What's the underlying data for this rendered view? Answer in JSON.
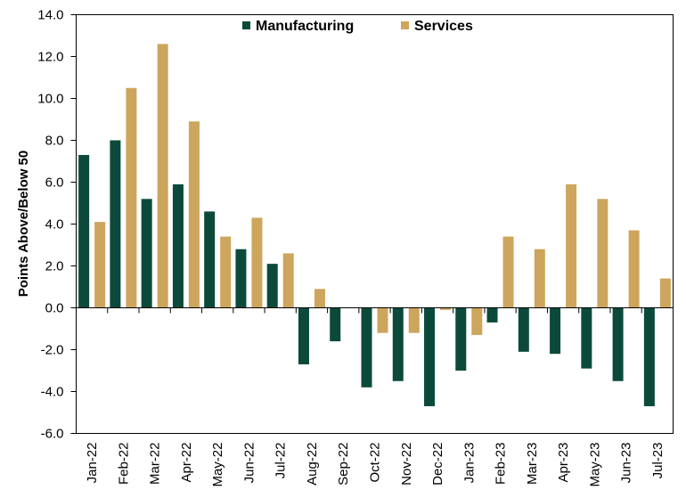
{
  "chart_data": {
    "type": "bar",
    "title": "",
    "xlabel": "",
    "ylabel": "Points Above/Below 50",
    "ylim": [
      -6.0,
      14.0
    ],
    "yticks": [
      "14.0",
      "12.0",
      "10.0",
      "8.0",
      "6.0",
      "4.0",
      "2.0",
      "0.0",
      "-2.0",
      "-4.0",
      "-6.0"
    ],
    "categories": [
      "Jan-22",
      "Feb-22",
      "Mar-22",
      "Apr-22",
      "May-22",
      "Jun-22",
      "Jul-22",
      "Aug-22",
      "Sep-22",
      "Oct-22",
      "Nov-22",
      "Dec-22",
      "Jan-23",
      "Feb-23",
      "Mar-23",
      "Apr-23",
      "May-23",
      "Jun-23",
      "Jul-23"
    ],
    "series": [
      {
        "name": "Manufacturing",
        "color": "#0b4a3b",
        "values": [
          7.3,
          8.0,
          5.2,
          5.9,
          4.6,
          2.8,
          2.1,
          -2.7,
          -1.6,
          -3.8,
          -3.5,
          -4.7,
          -3.0,
          -0.7,
          -2.1,
          -2.2,
          -2.9,
          -3.5,
          -4.7
        ]
      },
      {
        "name": "Services",
        "color": "#cda55d",
        "values": [
          4.1,
          10.5,
          12.6,
          8.9,
          3.4,
          4.3,
          2.6,
          0.9,
          0.0,
          -1.2,
          -1.2,
          -0.1,
          -1.3,
          3.4,
          2.8,
          5.9,
          5.2,
          3.7,
          1.4
        ]
      }
    ],
    "grid": false,
    "legend_position": "top-center"
  }
}
